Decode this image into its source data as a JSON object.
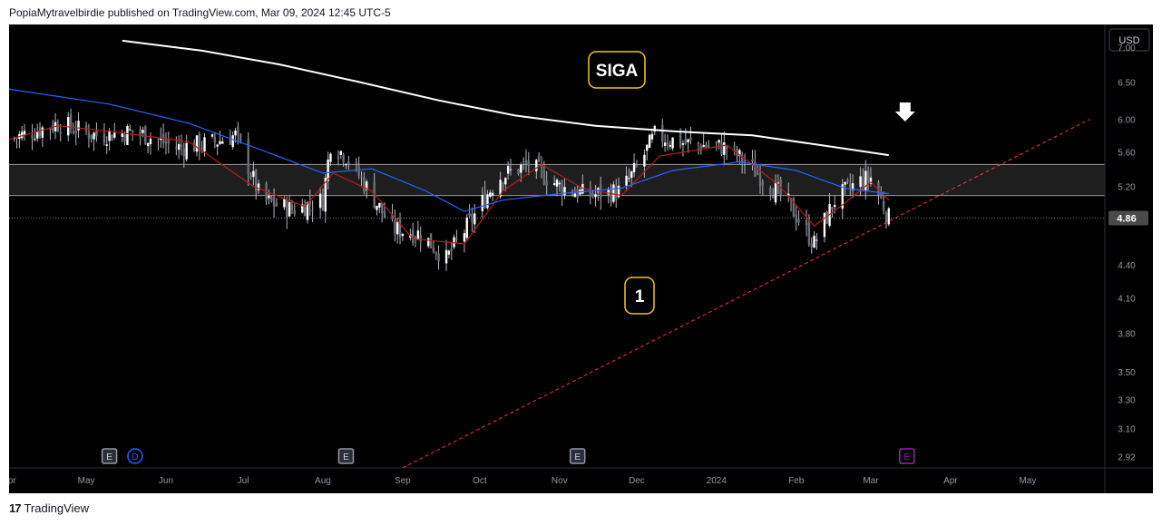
{
  "header": {
    "publisher_line": "PopiaMytravelbirdie published on TradingView.com, Mar 09, 2024 12:45 UTC-5"
  },
  "footer": {
    "logo_glyph": "17",
    "brand": "TradingView"
  },
  "colors": {
    "background": "#000000",
    "axis_text": "#9598a1",
    "price_label_bg": "#4a4a4a",
    "ma_long": "#ffffff",
    "ma_mid": "#2962ff",
    "ma_short": "#b71c1c",
    "trendline": "#f23645",
    "zone_fill": "#1e1e1e",
    "annotation_border": "#f5c518",
    "arrow": "#ffffff",
    "candle": "#b2b5be",
    "event_earnings": "#9598a1",
    "event_dividend": "#2962ff",
    "event_upcoming": "#9c27b0"
  },
  "chart_data": {
    "type": "candlestick",
    "symbol_label": "SIGA",
    "wave_label": "1",
    "currency": "USD",
    "last_price": "4.86",
    "y_axis": {
      "scale": "log",
      "range": [
        2.85,
        7.35
      ],
      "ticks": [
        "7.00",
        "6.50",
        "6.00",
        "5.60",
        "5.20",
        "4.40",
        "4.10",
        "3.80",
        "3.50",
        "3.30",
        "3.10",
        "2.92"
      ]
    },
    "x_axis": {
      "ticks": [
        "Apr",
        "May",
        "Jun",
        "Jul",
        "Aug",
        "Sep",
        "Oct",
        "Nov",
        "Dec",
        "2024",
        "Feb",
        "Mar",
        "Apr",
        "May"
      ]
    },
    "close_series": [
      {
        "d": "2023-04-01",
        "c": 5.75
      },
      {
        "d": "2023-04-20",
        "c": 5.95
      },
      {
        "d": "2023-05-05",
        "c": 5.8
      },
      {
        "d": "2023-05-20",
        "c": 5.85
      },
      {
        "d": "2023-06-05",
        "c": 5.65
      },
      {
        "d": "2023-06-18",
        "c": 5.7
      },
      {
        "d": "2023-06-28",
        "c": 5.8
      },
      {
        "d": "2023-07-08",
        "c": 5.05
      },
      {
        "d": "2023-07-20",
        "c": 4.95
      },
      {
        "d": "2023-08-01",
        "c": 5.05
      },
      {
        "d": "2023-08-04",
        "c": 5.7
      },
      {
        "d": "2023-08-10",
        "c": 5.55
      },
      {
        "d": "2023-08-20",
        "c": 5.1
      },
      {
        "d": "2023-08-28",
        "c": 4.75
      },
      {
        "d": "2023-09-08",
        "c": 4.7
      },
      {
        "d": "2023-09-18",
        "c": 4.45
      },
      {
        "d": "2023-09-28",
        "c": 4.85
      },
      {
        "d": "2023-10-08",
        "c": 5.3
      },
      {
        "d": "2023-10-20",
        "c": 5.45
      },
      {
        "d": "2023-11-01",
        "c": 5.2
      },
      {
        "d": "2023-11-12",
        "c": 5.1
      },
      {
        "d": "2023-11-25",
        "c": 5.15
      },
      {
        "d": "2023-12-02",
        "c": 5.45
      },
      {
        "d": "2023-12-08",
        "c": 5.8
      },
      {
        "d": "2023-12-20",
        "c": 5.7
      },
      {
        "d": "2024-01-05",
        "c": 5.65
      },
      {
        "d": "2024-01-15",
        "c": 5.4
      },
      {
        "d": "2024-01-28",
        "c": 5.05
      },
      {
        "d": "2024-02-08",
        "c": 4.6
      },
      {
        "d": "2024-02-16",
        "c": 5.05
      },
      {
        "d": "2024-02-25",
        "c": 5.25
      },
      {
        "d": "2024-03-01",
        "c": 5.3
      },
      {
        "d": "2024-03-08",
        "c": 4.86
      }
    ],
    "ma_long": [
      {
        "d": "2023-05-15",
        "v": 7.1
      },
      {
        "d": "2023-06-15",
        "v": 6.95
      },
      {
        "d": "2023-07-15",
        "v": 6.75
      },
      {
        "d": "2023-08-15",
        "v": 6.5
      },
      {
        "d": "2023-09-15",
        "v": 6.25
      },
      {
        "d": "2023-10-15",
        "v": 6.05
      },
      {
        "d": "2023-11-15",
        "v": 5.92
      },
      {
        "d": "2023-12-15",
        "v": 5.85
      },
      {
        "d": "2024-01-15",
        "v": 5.8
      },
      {
        "d": "2024-02-15",
        "v": 5.66
      },
      {
        "d": "2024-03-08",
        "v": 5.56
      }
    ],
    "ma_mid": [
      {
        "d": "2023-04-01",
        "v": 6.4
      },
      {
        "d": "2023-05-10",
        "v": 6.2
      },
      {
        "d": "2023-06-10",
        "v": 5.95
      },
      {
        "d": "2023-07-10",
        "v": 5.6
      },
      {
        "d": "2023-08-01",
        "v": 5.35
      },
      {
        "d": "2023-08-20",
        "v": 5.4
      },
      {
        "d": "2023-09-10",
        "v": 5.15
      },
      {
        "d": "2023-09-25",
        "v": 4.93
      },
      {
        "d": "2023-10-10",
        "v": 5.05
      },
      {
        "d": "2023-11-01",
        "v": 5.12
      },
      {
        "d": "2023-11-25",
        "v": 5.18
      },
      {
        "d": "2023-12-15",
        "v": 5.38
      },
      {
        "d": "2024-01-10",
        "v": 5.48
      },
      {
        "d": "2024-02-01",
        "v": 5.38
      },
      {
        "d": "2024-02-20",
        "v": 5.18
      },
      {
        "d": "2024-03-08",
        "v": 5.12
      }
    ],
    "ma_short": [
      {
        "d": "2023-04-01",
        "v": 5.75
      },
      {
        "d": "2023-04-20",
        "v": 5.92
      },
      {
        "d": "2023-05-10",
        "v": 5.85
      },
      {
        "d": "2023-06-10",
        "v": 5.72
      },
      {
        "d": "2023-07-05",
        "v": 5.2
      },
      {
        "d": "2023-07-25",
        "v": 4.98
      },
      {
        "d": "2023-08-05",
        "v": 5.35
      },
      {
        "d": "2023-08-20",
        "v": 5.15
      },
      {
        "d": "2023-09-05",
        "v": 4.65
      },
      {
        "d": "2023-09-25",
        "v": 4.6
      },
      {
        "d": "2023-10-10",
        "v": 5.15
      },
      {
        "d": "2023-10-25",
        "v": 5.45
      },
      {
        "d": "2023-11-10",
        "v": 5.18
      },
      {
        "d": "2023-11-25",
        "v": 5.1
      },
      {
        "d": "2023-12-10",
        "v": 5.55
      },
      {
        "d": "2024-01-05",
        "v": 5.68
      },
      {
        "d": "2024-01-25",
        "v": 5.22
      },
      {
        "d": "2024-02-08",
        "v": 4.78
      },
      {
        "d": "2024-02-20",
        "v": 5.02
      },
      {
        "d": "2024-03-01",
        "v": 5.25
      },
      {
        "d": "2024-03-08",
        "v": 5.05
      }
    ],
    "horizontal_zone": {
      "top": 5.45,
      "bottom": 5.1
    },
    "last_price_line": 4.86,
    "trendline": {
      "from": {
        "d": "2023-09-01",
        "v": 2.85
      },
      "to": {
        "d": "2024-05-25",
        "v": 6.0
      }
    },
    "events": [
      {
        "d": "2023-05-10",
        "label": "E",
        "kind": "earnings"
      },
      {
        "d": "2023-05-20",
        "label": "D",
        "kind": "dividend"
      },
      {
        "d": "2023-08-10",
        "label": "E",
        "kind": "earnings"
      },
      {
        "d": "2023-11-08",
        "label": "E",
        "kind": "earnings"
      },
      {
        "d": "2024-03-08",
        "label": "E",
        "kind": "upcoming"
      }
    ],
    "arrow_marker": {
      "d": "2024-03-08",
      "direction": "down"
    }
  }
}
